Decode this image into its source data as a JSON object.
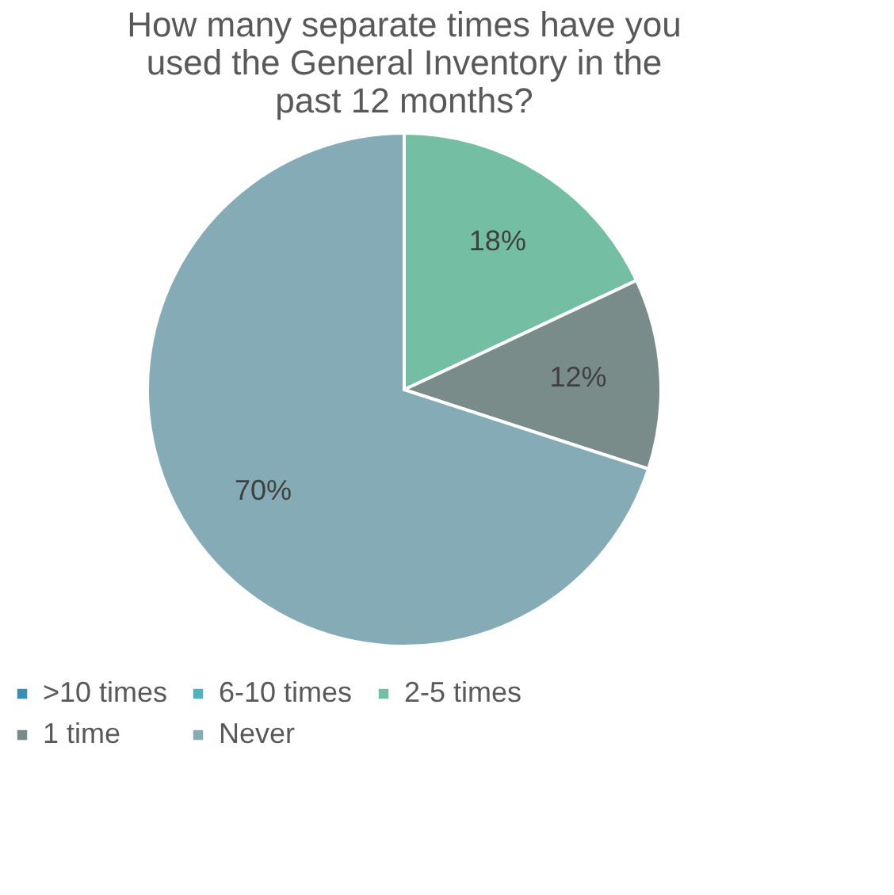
{
  "chart_data": {
    "type": "pie",
    "title": "How many separate times have you used the General Inventory in the past 12 months?",
    "categories": [
      ">10 times",
      "6-10 times",
      "2-5 times",
      "1 time",
      "Never"
    ],
    "values": [
      0,
      0,
      18,
      12,
      70
    ],
    "value_labels": [
      null,
      null,
      "18%",
      "12%",
      "70%"
    ],
    "colors": [
      "#3a8fb7",
      "#4fb3c2",
      "#74bfa4",
      "#798c8a",
      "#85acb6"
    ],
    "legend": "bottom"
  }
}
